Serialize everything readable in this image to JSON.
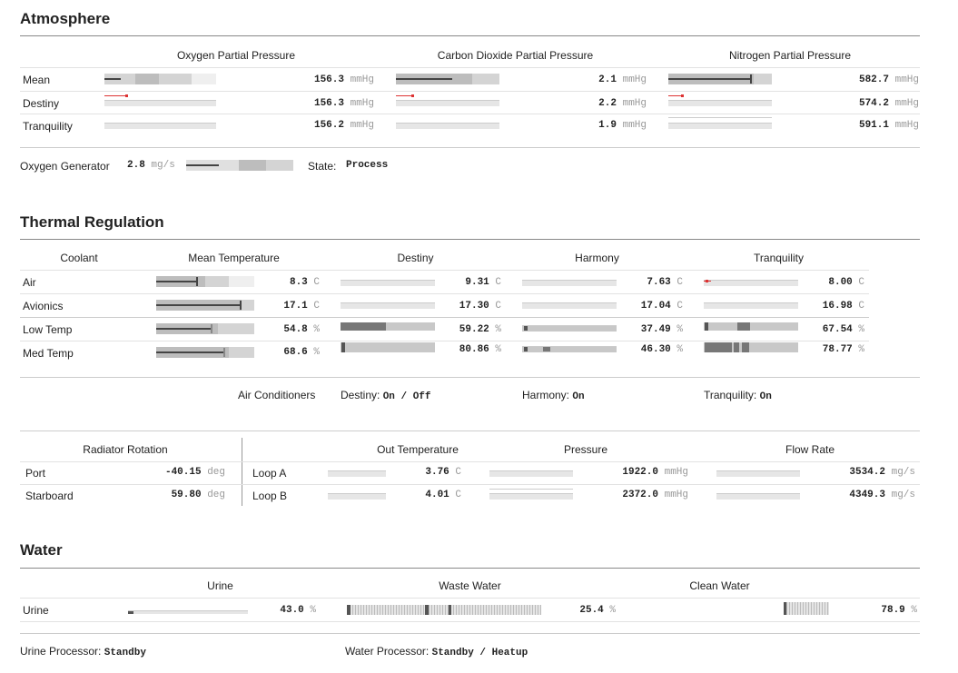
{
  "atmosphere": {
    "title": "Atmosphere",
    "cols": [
      "Oxygen Partial Pressure",
      "Carbon Dioxide Partial Pressure",
      "Nitrogen Partial Pressure"
    ],
    "rows": [
      {
        "label": "Mean",
        "values": [
          "156.3",
          "2.1",
          "582.7"
        ]
      },
      {
        "label": "Destiny",
        "values": [
          "156.3",
          "2.2",
          "574.2"
        ]
      },
      {
        "label": "Tranquility",
        "values": [
          "156.2",
          "1.9",
          "591.1"
        ]
      }
    ],
    "unit": "mmHg",
    "generator_label": "Oxygen Generator",
    "generator_value": "2.8",
    "generator_unit": "mg/s",
    "state_label": "State:",
    "state_value": "Process"
  },
  "thermal": {
    "title": "Thermal Regulation",
    "cols": [
      "Coolant",
      "Mean Temperature",
      "Destiny",
      "Harmony",
      "Tranquility"
    ],
    "rows": [
      {
        "label": "Air",
        "values": [
          "8.3",
          "9.31",
          "7.63",
          "8.00"
        ],
        "unit": "C"
      },
      {
        "label": "Avionics",
        "values": [
          "17.1",
          "17.30",
          "17.04",
          "16.98"
        ],
        "unit": "C"
      },
      {
        "label": "Low Temp",
        "values": [
          "54.8",
          "59.22",
          "37.49",
          "67.54"
        ],
        "unit": "%"
      },
      {
        "label": "Med Temp",
        "values": [
          "68.6",
          "80.86",
          "46.30",
          "78.77"
        ],
        "unit": "%"
      }
    ],
    "ac_label": "Air Conditioners",
    "ac": [
      {
        "label": "Destiny:",
        "value": "On / Off"
      },
      {
        "label": "Harmony:",
        "value": "On"
      },
      {
        "label": "Tranquility:",
        "value": "On"
      }
    ],
    "radiator_title": "Radiator Rotation",
    "radiator": [
      {
        "label": "Port",
        "value": "-40.15",
        "unit": "deg"
      },
      {
        "label": "Starboard",
        "value": "59.80",
        "unit": "deg"
      }
    ],
    "loop_cols": [
      "Out Temperature",
      "Pressure",
      "Flow Rate"
    ],
    "loops": [
      {
        "label": "Loop A",
        "temp": "3.76",
        "temp_unit": "C",
        "pressure": "1922.0",
        "pressure_unit": "mmHg",
        "flow": "3534.2",
        "flow_unit": "mg/s"
      },
      {
        "label": "Loop B",
        "temp": "4.01",
        "temp_unit": "C",
        "pressure": "2372.0",
        "pressure_unit": "mmHg",
        "flow": "4349.3",
        "flow_unit": "mg/s"
      }
    ]
  },
  "water": {
    "title": "Water",
    "cols": [
      "Urine",
      "Waste Water",
      "Clean Water"
    ],
    "row_label": "Urine",
    "values": [
      "43.0",
      "25.4",
      "78.9"
    ],
    "unit": "%",
    "urine_proc_label": "Urine Processor:",
    "urine_proc_value": "Standby",
    "water_proc_label": "Water Processor:",
    "water_proc_value": "Standby / Heatup"
  }
}
